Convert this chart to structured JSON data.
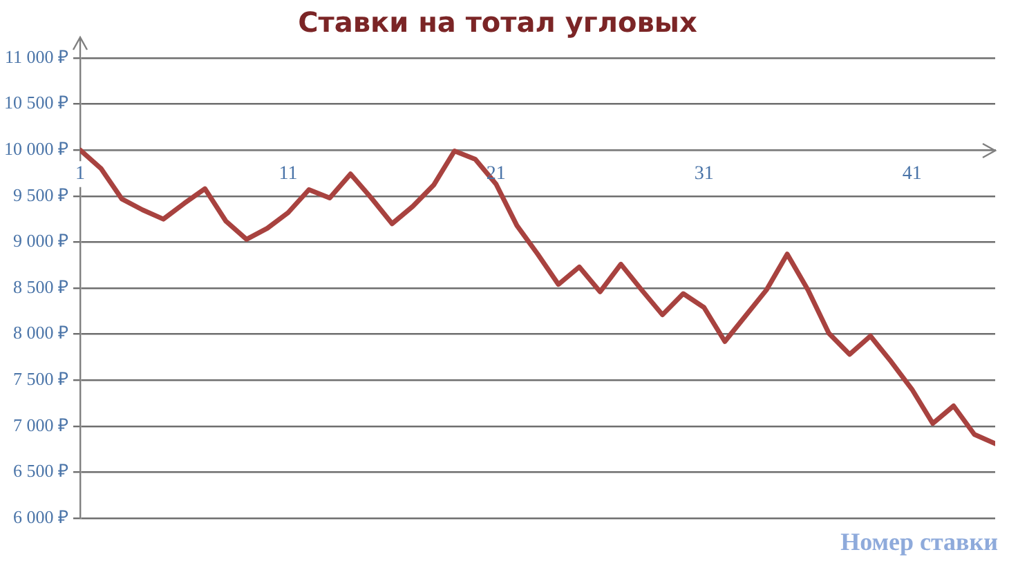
{
  "chart_data": {
    "type": "line",
    "title": "Ставки на тотал угловых",
    "xlabel": "Номер ставки",
    "x": [
      1,
      2,
      3,
      4,
      5,
      6,
      7,
      8,
      9,
      10,
      11,
      12,
      13,
      14,
      15,
      16,
      17,
      18,
      19,
      20,
      21,
      22,
      23,
      24,
      25,
      26,
      27,
      28,
      29,
      30,
      31,
      32,
      33,
      34,
      35,
      36,
      37,
      38,
      39,
      40,
      41,
      42,
      43,
      44,
      45
    ],
    "series": [
      {
        "color": "#a8423f",
        "values": [
          10000,
          9800,
          9470,
          9350,
          9250,
          9420,
          9580,
          9230,
          9030,
          9150,
          9320,
          9570,
          9480,
          9740,
          9480,
          9200,
          9390,
          9620,
          9990,
          9900,
          9630,
          9180,
          8870,
          8540,
          8730,
          8460,
          8760,
          8480,
          8210,
          8440,
          8290,
          7920,
          8200,
          8480,
          8870,
          8480,
          8010,
          7780,
          7980,
          7700,
          7400,
          7030,
          7220,
          6910,
          6810
        ]
      }
    ],
    "xlim": [
      1,
      45
    ],
    "xticks": [
      1,
      11,
      21,
      31,
      41
    ],
    "ylim": [
      6000,
      11000
    ],
    "yticks": [
      {
        "value": 6000,
        "label": "6 000 ₽"
      },
      {
        "value": 6500,
        "label": "6 500 ₽"
      },
      {
        "value": 7000,
        "label": "7 000 ₽"
      },
      {
        "value": 7500,
        "label": "7 500 ₽"
      },
      {
        "value": 8000,
        "label": "8 000 ₽"
      },
      {
        "value": 8500,
        "label": "8 500 ₽"
      },
      {
        "value": 9000,
        "label": "9 000 ₽"
      },
      {
        "value": 9500,
        "label": "9 500 ₽"
      },
      {
        "value": 10000,
        "label": "10 000 ₽"
      },
      {
        "value": 10500,
        "label": "10 500 ₽"
      },
      {
        "value": 11000,
        "label": "11 000 ₽"
      }
    ],
    "grid": "y",
    "legend": false,
    "marker": "none",
    "line_style": "solid"
  }
}
